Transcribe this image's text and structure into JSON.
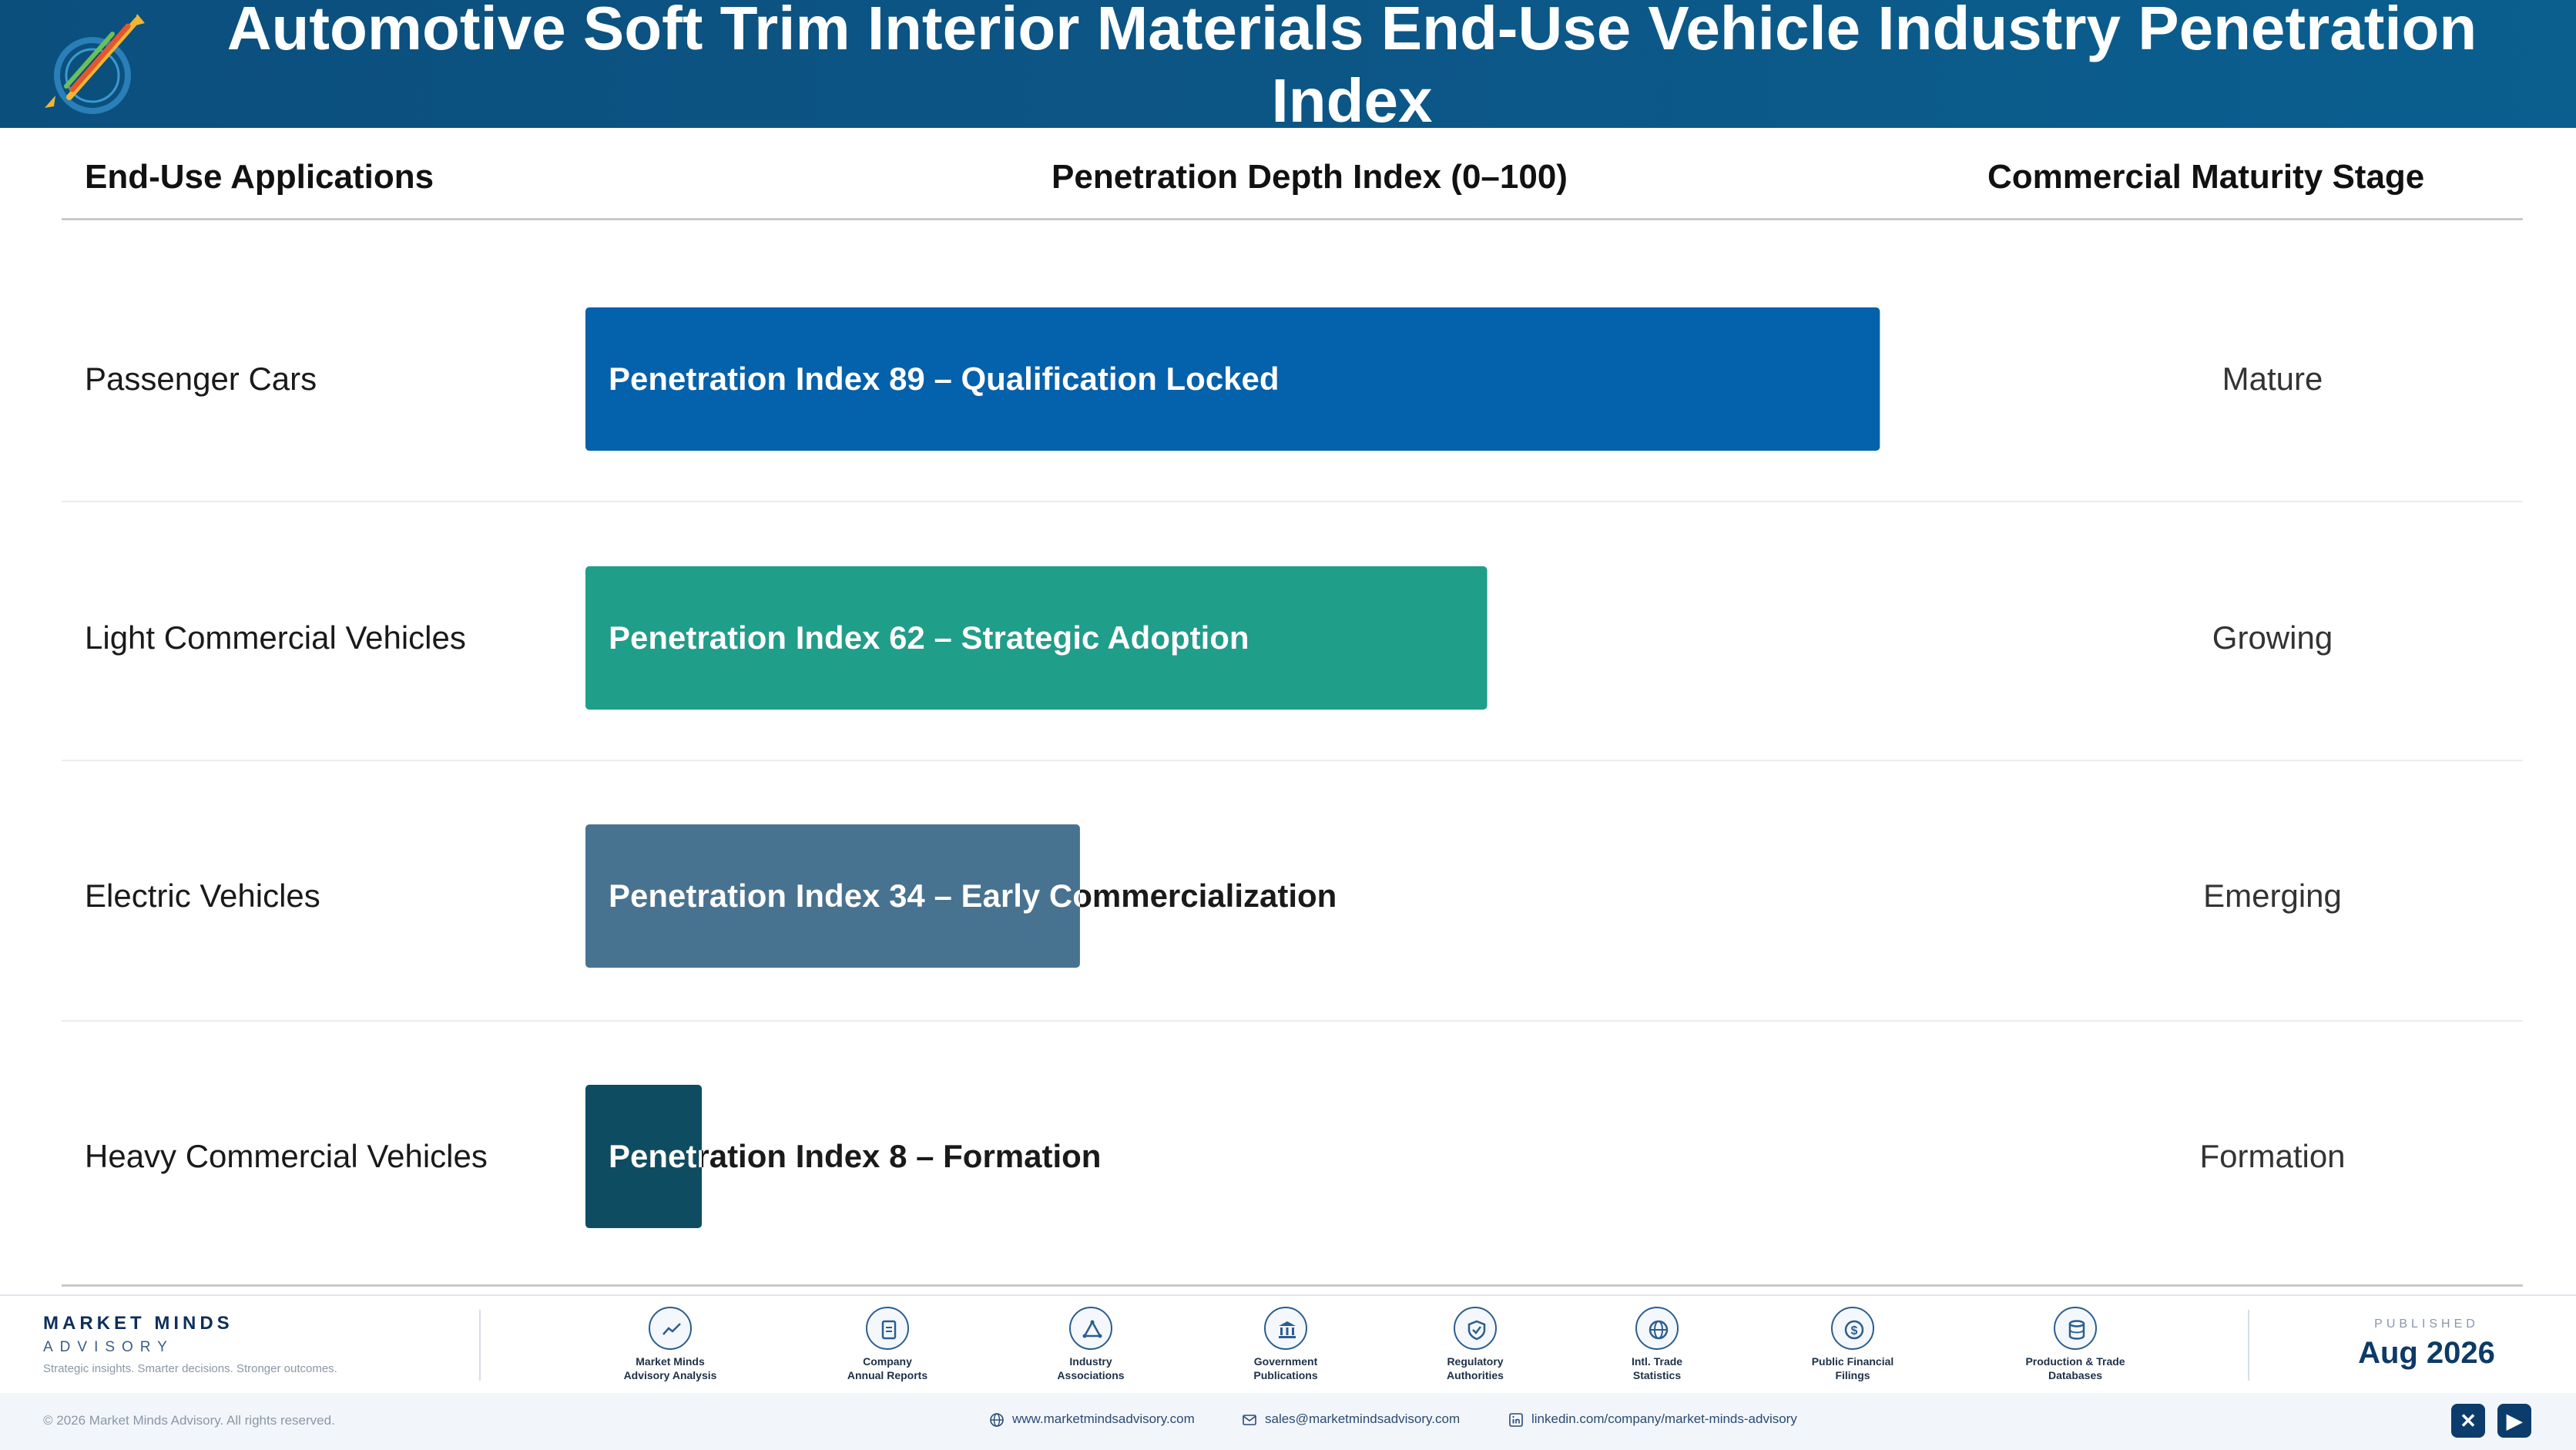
{
  "header": {
    "title": "Automotive Soft Trim Interior Materials End-Use Vehicle Industry Penetration Index"
  },
  "columns": {
    "applications": "End-Use Applications",
    "index": "Penetration Depth Index (0–100)",
    "stage": "Commercial Maturity Stage"
  },
  "chart_data": {
    "type": "bar",
    "orientation": "horizontal",
    "xlim": [
      0,
      100
    ],
    "categories": [
      "Passenger Cars",
      "Light Commercial Vehicles",
      "Electric Vehicles",
      "Heavy Commercial Vehicles"
    ],
    "values": [
      89,
      62,
      34,
      8
    ],
    "bar_labels": [
      "Penetration Index 89 – Qualification Locked",
      "Penetration Index 62 – Strategic Adoption",
      "Penetration Index 34 – Early Commercialization",
      "Penetration Index 8 – Formation"
    ],
    "colors": [
      "#0461ab",
      "#1f9e8a",
      "#477391",
      "#0e4d61"
    ],
    "stages": [
      "Mature",
      "Growing",
      "Emerging",
      "Formation"
    ],
    "grid": false
  },
  "footer": {
    "brand_name": "MARKET MINDS",
    "brand_sub": "ADVISORY",
    "tagline": "Strategic insights. Smarter decisions. Stronger outcomes.",
    "sources": [
      {
        "line1": "Market Minds",
        "line2": "Advisory Analysis",
        "icon": "chart-line-icon"
      },
      {
        "line1": "Company",
        "line2": "Annual Reports",
        "icon": "document-icon"
      },
      {
        "line1": "Industry",
        "line2": "Associations",
        "icon": "network-icon"
      },
      {
        "line1": "Government",
        "line2": "Publications",
        "icon": "building-icon"
      },
      {
        "line1": "Regulatory",
        "line2": "Authorities",
        "icon": "shield-icon"
      },
      {
        "line1": "Intl. Trade",
        "line2": "Statistics",
        "icon": "globe-icon"
      },
      {
        "line1": "Public Financial",
        "line2": "Filings",
        "icon": "dollar-icon"
      },
      {
        "line1": "Production & Trade",
        "line2": "Databases",
        "icon": "database-icon"
      }
    ],
    "published_label": "PUBLISHED",
    "published_date": "Aug 2026",
    "copyright": "© 2026 Market Minds Advisory. All rights reserved.",
    "website": "www.marketmindsadvisory.com",
    "email": "sales@marketmindsadvisory.com",
    "linkedin": "linkedin.com/company/market-minds-advisory"
  }
}
